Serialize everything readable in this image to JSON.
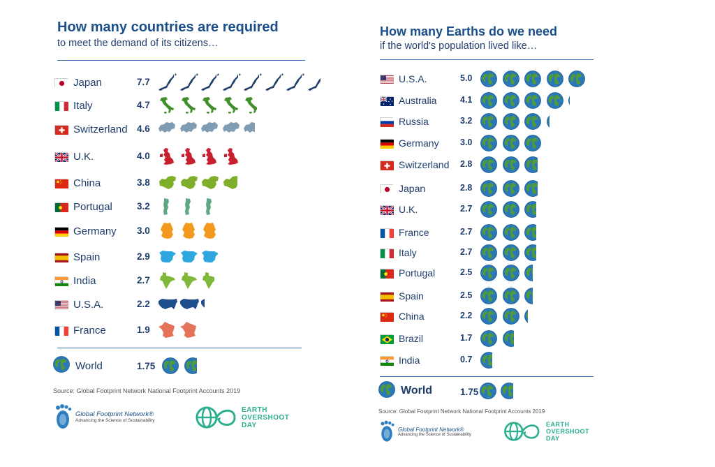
{
  "left": {
    "title": "How many countries are required",
    "subtitle": "to meet the demand of its citizens…",
    "source": "Source: Global Footprint Network National Footprint Accounts 2019",
    "world_label": "World",
    "world_value_label": "1.75"
  },
  "right": {
    "title": "How many Earths do we need",
    "subtitle": "if the world's population lived like…",
    "source": "Source: Global Footprint Network National Footprint Accounts 2019",
    "world_label": "World",
    "world_value_label": "1.75"
  },
  "logos": {
    "gfn_name": "Global Footprint Network®",
    "gfn_tagline": "Advancing the Science of Sustainability",
    "eod_line1": "EARTH",
    "eod_line2": "OVERSHOOT",
    "eod_line3": "DAY"
  },
  "colors": {
    "title": "#1b4f8a",
    "rule": "#3a73b8",
    "earth_ocean": "#2a78b8",
    "earth_land": "#4f9a3a",
    "eod_green": "#2cae8f"
  },
  "chart_data": [
    {
      "type": "bar",
      "title": "How many countries are required",
      "subtitle": "to meet the demand of its citizens…",
      "categories": [
        "Japan",
        "Italy",
        "Switzerland",
        "U.K.",
        "China",
        "Portugal",
        "Germany",
        "Spain",
        "India",
        "U.S.A.",
        "France"
      ],
      "values": [
        7.7,
        4.7,
        4.6,
        4.0,
        3.8,
        3.2,
        3.0,
        2.9,
        2.7,
        2.2,
        1.9
      ],
      "value_labels": [
        "7.7",
        "4.7",
        "4.6",
        "4.0",
        "3.8",
        "3.2",
        "3.0",
        "2.9",
        "2.7",
        "2.2",
        "1.9"
      ],
      "icon_colors": [
        "#1f3d6b",
        "#3e8f2a",
        "#7f9cb5",
        "#c8202f",
        "#7fae2b",
        "#5fa783",
        "#f39a1e",
        "#2fa6dd",
        "#7fb83a",
        "#1f4e8c",
        "#e5735a"
      ],
      "flags": [
        "jp",
        "it",
        "ch",
        "uk",
        "cn",
        "pt",
        "de",
        "es",
        "in",
        "us",
        "fr"
      ],
      "world": {
        "label": "World",
        "value": 1.75
      }
    },
    {
      "type": "bar",
      "title": "How many Earths do we need",
      "subtitle": "if the world's population lived like…",
      "categories": [
        "U.S.A.",
        "Australia",
        "Russia",
        "Germany",
        "Switzerland",
        "Japan",
        "U.K.",
        "France",
        "Italy",
        "Portugal",
        "Spain",
        "China",
        "Brazil",
        "India"
      ],
      "values": [
        5.0,
        4.1,
        3.2,
        3.0,
        2.8,
        2.8,
        2.7,
        2.7,
        2.7,
        2.5,
        2.5,
        2.2,
        1.7,
        0.7
      ],
      "value_labels": [
        "5.0",
        "4.1",
        "3.2",
        "3.0",
        "2.8",
        "2.8",
        "2.7",
        "2.7",
        "2.7",
        "2.5",
        "2.5",
        "2.2",
        "1.7",
        "0.7"
      ],
      "flags": [
        "us",
        "au",
        "ru",
        "de",
        "ch",
        "jp",
        "uk",
        "fr",
        "it",
        "pt",
        "es",
        "cn",
        "br",
        "in"
      ],
      "world": {
        "label": "World",
        "value": 1.75
      }
    }
  ]
}
